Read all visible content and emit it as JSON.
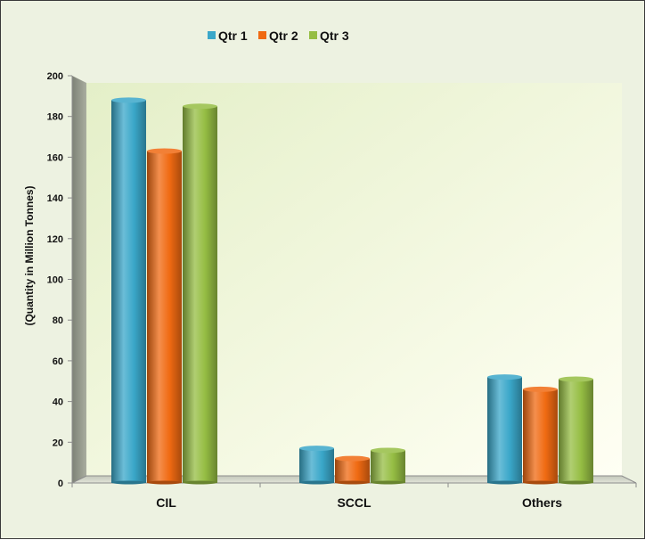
{
  "chart_data": {
    "type": "bar",
    "title": "",
    "xlabel": "",
    "ylabel": "(Quantity in Million Tonnes)",
    "categories": [
      "CIL",
      "SCCL",
      "Others"
    ],
    "series": [
      {
        "name": "Qtr 1",
        "color": "#3aa7c9",
        "values": [
          188,
          17,
          52
        ]
      },
      {
        "name": "Qtr 2",
        "color": "#f06a12",
        "values": [
          163,
          12,
          46
        ]
      },
      {
        "name": "Qtr 3",
        "color": "#95bd43",
        "values": [
          185,
          16,
          51
        ]
      }
    ],
    "ylim": [
      0,
      200
    ],
    "yticks": [
      0,
      20,
      40,
      60,
      80,
      100,
      120,
      140,
      160,
      180,
      200
    ],
    "legend_position": "top",
    "grid": false
  }
}
